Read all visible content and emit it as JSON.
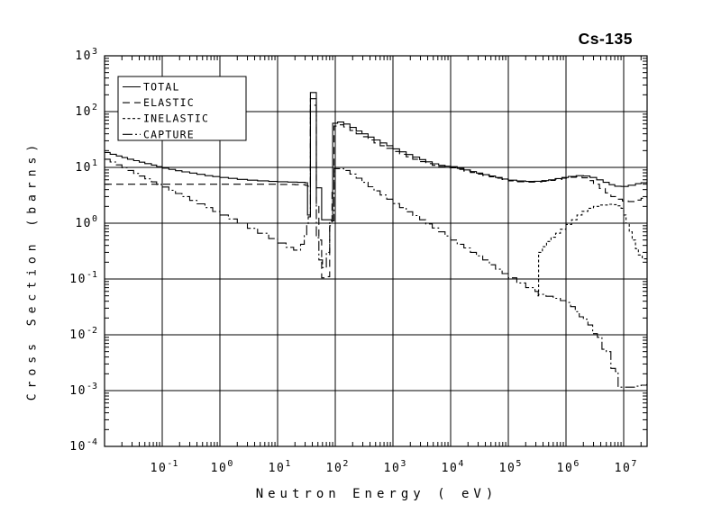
{
  "title": "Cs-135",
  "chart_data": {
    "type": "line",
    "title": "Cs-135",
    "xlabel": "Neutron Energy ( eV)",
    "ylabel": "Cross Section (barns)",
    "x_scale": "log",
    "y_scale": "log",
    "xlim": [
      0.01,
      25000000
    ],
    "ylim": [
      0.0001,
      1000
    ],
    "x_tick_exponents": [
      -1,
      0,
      1,
      2,
      3,
      4,
      5,
      6,
      7
    ],
    "y_tick_exponents": [
      3,
      2,
      1,
      0,
      -1,
      -2,
      -3,
      -4
    ],
    "grid": true,
    "legend_position": "top-left",
    "line_color": "#000000",
    "background_color": "#ffffff",
    "legend": [
      "TOTAL",
      "ELASTIC",
      "INELASTIC",
      "CAPTURE"
    ],
    "series": [
      {
        "name": "TOTAL",
        "style": "solid",
        "points": [
          [
            0.01,
            18.5
          ],
          [
            0.0125,
            17.2
          ],
          [
            0.016,
            16
          ],
          [
            0.02,
            15
          ],
          [
            0.025,
            14
          ],
          [
            0.032,
            13.2
          ],
          [
            0.04,
            12.4
          ],
          [
            0.05,
            11.7
          ],
          [
            0.065,
            11
          ],
          [
            0.08,
            10.3
          ],
          [
            0.1,
            9.7
          ],
          [
            0.13,
            9.2
          ],
          [
            0.17,
            8.7
          ],
          [
            0.22,
            8.3
          ],
          [
            0.3,
            7.9
          ],
          [
            0.4,
            7.5
          ],
          [
            0.55,
            7.1
          ],
          [
            0.75,
            6.85
          ],
          [
            1,
            6.6
          ],
          [
            1.4,
            6.35
          ],
          [
            2,
            6.1
          ],
          [
            3,
            5.9
          ],
          [
            4.5,
            5.75
          ],
          [
            7,
            5.6
          ],
          [
            10,
            5.55
          ],
          [
            15,
            5.45
          ],
          [
            22,
            5.4
          ],
          [
            30,
            5.3
          ],
          [
            33,
            1.4
          ],
          [
            37,
            220
          ],
          [
            47,
            4.3
          ],
          [
            58,
            1.15
          ],
          [
            90,
            62
          ],
          [
            110,
            65
          ],
          [
            140,
            60
          ],
          [
            180,
            52
          ],
          [
            230,
            45
          ],
          [
            290,
            40
          ],
          [
            370,
            35
          ],
          [
            470,
            31
          ],
          [
            600,
            27.5
          ],
          [
            780,
            24.5
          ],
          [
            1000,
            21.5
          ],
          [
            1300,
            19
          ],
          [
            1700,
            17
          ],
          [
            2200,
            15.3
          ],
          [
            2900,
            13.8
          ],
          [
            3700,
            12.6
          ],
          [
            4800,
            11.6
          ],
          [
            6200,
            10.9
          ],
          [
            8000,
            10.5
          ],
          [
            10000,
            10.3
          ],
          [
            13000,
            9.6
          ],
          [
            17000,
            9
          ],
          [
            22000,
            8.4
          ],
          [
            28000,
            7.9
          ],
          [
            36000,
            7.4
          ],
          [
            47000,
            7
          ],
          [
            60000,
            6.6
          ],
          [
            78000,
            6.2
          ],
          [
            100000,
            5.9
          ],
          [
            140000,
            5.7
          ],
          [
            200000,
            5.6
          ],
          [
            280000,
            5.65
          ],
          [
            380000,
            5.8
          ],
          [
            500000,
            6
          ],
          [
            650000,
            6.3
          ],
          [
            850000,
            6.6
          ],
          [
            1100000,
            6.9
          ],
          [
            1500000,
            7.1
          ],
          [
            2000000,
            7
          ],
          [
            2600000,
            6.6
          ],
          [
            3400000,
            6
          ],
          [
            4400000,
            5.4
          ],
          [
            5600000,
            4.9
          ],
          [
            7000000,
            4.6
          ],
          [
            9000000,
            4.55
          ],
          [
            12000000,
            4.8
          ],
          [
            16000000,
            5.1
          ],
          [
            20000000,
            5.3
          ],
          [
            25000000,
            5.45
          ]
        ]
      },
      {
        "name": "ELASTIC",
        "style": "long-dash",
        "points": [
          [
            0.01,
            5.0
          ],
          [
            1,
            5.0
          ],
          [
            10,
            4.95
          ],
          [
            20,
            4.9
          ],
          [
            30,
            4.8
          ],
          [
            33,
            4.6
          ],
          [
            37,
            130
          ],
          [
            47,
            2.2
          ],
          [
            52,
            0.5
          ],
          [
            58,
            0.105
          ],
          [
            72,
            0.11
          ],
          [
            80,
            0.9
          ],
          [
            88,
            3.9
          ],
          [
            95,
            55
          ],
          [
            110,
            58
          ],
          [
            140,
            53
          ],
          [
            180,
            46
          ],
          [
            230,
            40
          ],
          [
            290,
            35.5
          ],
          [
            370,
            31
          ],
          [
            470,
            27.5
          ],
          [
            600,
            24.5
          ],
          [
            780,
            22
          ],
          [
            1000,
            19.3
          ],
          [
            1300,
            17.2
          ],
          [
            1700,
            15.5
          ],
          [
            2200,
            14
          ],
          [
            2900,
            12.7
          ],
          [
            3700,
            11.7
          ],
          [
            4800,
            10.9
          ],
          [
            6200,
            10.3
          ],
          [
            8000,
            9.9
          ],
          [
            10000,
            9.85
          ],
          [
            13000,
            9.2
          ],
          [
            17000,
            8.6
          ],
          [
            22000,
            8.1
          ],
          [
            28000,
            7.6
          ],
          [
            36000,
            7.15
          ],
          [
            47000,
            6.8
          ],
          [
            60000,
            6.4
          ],
          [
            78000,
            6.05
          ],
          [
            100000,
            5.75
          ],
          [
            140000,
            5.55
          ],
          [
            200000,
            5.45
          ],
          [
            280000,
            5.5
          ],
          [
            380000,
            5.65
          ],
          [
            500000,
            5.85
          ],
          [
            650000,
            6.1
          ],
          [
            850000,
            6.4
          ],
          [
            1100000,
            6.65
          ],
          [
            1500000,
            6.8
          ],
          [
            1900000,
            6.5
          ],
          [
            2400000,
            5.8
          ],
          [
            3000000,
            5
          ],
          [
            3800000,
            4.2
          ],
          [
            4800000,
            3.5
          ],
          [
            6000000,
            3
          ],
          [
            7500000,
            2.7
          ],
          [
            9500000,
            2.5
          ],
          [
            12000000,
            2.45
          ],
          [
            16000000,
            2.6
          ],
          [
            20000000,
            2.8
          ],
          [
            25000000,
            2.95
          ]
        ]
      },
      {
        "name": "INELASTIC",
        "style": "short-dash",
        "points": [
          [
            320000,
            0.05
          ],
          [
            335000,
            0.3
          ],
          [
            390000,
            0.38
          ],
          [
            460000,
            0.47
          ],
          [
            550000,
            0.56
          ],
          [
            660000,
            0.66
          ],
          [
            800000,
            0.78
          ],
          [
            1000000,
            0.95
          ],
          [
            1250000,
            1.15
          ],
          [
            1550000,
            1.4
          ],
          [
            1900000,
            1.63
          ],
          [
            2400000,
            1.85
          ],
          [
            3000000,
            2
          ],
          [
            4000000,
            2.12
          ],
          [
            5200000,
            2.18
          ],
          [
            6600000,
            2.15
          ],
          [
            8000000,
            2.05
          ],
          [
            9000000,
            1.85
          ],
          [
            10000000,
            1.4
          ],
          [
            11000000,
            1
          ],
          [
            12500000,
            0.7
          ],
          [
            14000000,
            0.5
          ],
          [
            16000000,
            0.35
          ],
          [
            18000000,
            0.27
          ],
          [
            21000000,
            0.23
          ],
          [
            25000000,
            0.21
          ]
        ]
      },
      {
        "name": "CAPTURE",
        "style": "dash-dot",
        "points": [
          [
            0.01,
            14
          ],
          [
            0.0125,
            12.5
          ],
          [
            0.016,
            11.1
          ],
          [
            0.02,
            9.9
          ],
          [
            0.025,
            8.8
          ],
          [
            0.032,
            7.8
          ],
          [
            0.04,
            7
          ],
          [
            0.05,
            6.25
          ],
          [
            0.065,
            5.5
          ],
          [
            0.08,
            4.95
          ],
          [
            0.1,
            4.45
          ],
          [
            0.13,
            3.9
          ],
          [
            0.17,
            3.4
          ],
          [
            0.22,
            3
          ],
          [
            0.3,
            2.56
          ],
          [
            0.4,
            2.22
          ],
          [
            0.55,
            1.9
          ],
          [
            0.75,
            1.62
          ],
          [
            1,
            1.4
          ],
          [
            1.4,
            1.19
          ],
          [
            2,
            1
          ],
          [
            3,
            0.81
          ],
          [
            4.5,
            0.66
          ],
          [
            7,
            0.53
          ],
          [
            10,
            0.44
          ],
          [
            14,
            0.37
          ],
          [
            19,
            0.33
          ],
          [
            25,
            0.42
          ],
          [
            29,
            0.6
          ],
          [
            32,
            0.95
          ],
          [
            34,
            1.3
          ],
          [
            37,
            170
          ],
          [
            47,
            0.55
          ],
          [
            52,
            0.22
          ],
          [
            60,
            0.16
          ],
          [
            70,
            0.3
          ],
          [
            80,
            1.1
          ],
          [
            95,
            9.5
          ],
          [
            140,
            8.8
          ],
          [
            180,
            7.6
          ],
          [
            230,
            6.4
          ],
          [
            290,
            5.4
          ],
          [
            370,
            4.5
          ],
          [
            470,
            3.8
          ],
          [
            600,
            3.2
          ],
          [
            780,
            2.7
          ],
          [
            1000,
            2.25
          ],
          [
            1300,
            1.9
          ],
          [
            1700,
            1.6
          ],
          [
            2200,
            1.37
          ],
          [
            2900,
            1.15
          ],
          [
            3700,
            0.97
          ],
          [
            4800,
            0.82
          ],
          [
            6200,
            0.7
          ],
          [
            8000,
            0.59
          ],
          [
            10000,
            0.5
          ],
          [
            13000,
            0.42
          ],
          [
            17000,
            0.36
          ],
          [
            22000,
            0.3
          ],
          [
            28000,
            0.26
          ],
          [
            36000,
            0.22
          ],
          [
            47000,
            0.18
          ],
          [
            60000,
            0.15
          ],
          [
            78000,
            0.125
          ],
          [
            100000,
            0.105
          ],
          [
            140000,
            0.085
          ],
          [
            200000,
            0.07
          ],
          [
            290000,
            0.06
          ],
          [
            330000,
            0.053
          ],
          [
            450000,
            0.049
          ],
          [
            600000,
            0.045
          ],
          [
            800000,
            0.041
          ],
          [
            1000000,
            0.038
          ],
          [
            1200000,
            0.032
          ],
          [
            1450000,
            0.026
          ],
          [
            1700000,
            0.021
          ],
          [
            2000000,
            0.019
          ],
          [
            2400000,
            0.015
          ],
          [
            2900000,
            0.0105
          ],
          [
            3500000,
            0.009
          ],
          [
            4200000,
            0.0055
          ],
          [
            5000000,
            0.005
          ],
          [
            6000000,
            0.0025
          ],
          [
            7200000,
            0.0022
          ],
          [
            8000000,
            0.00115
          ],
          [
            12000000,
            0.00115
          ],
          [
            16000000,
            0.0012
          ],
          [
            20000000,
            0.00125
          ],
          [
            25000000,
            0.0013
          ]
        ]
      }
    ]
  }
}
